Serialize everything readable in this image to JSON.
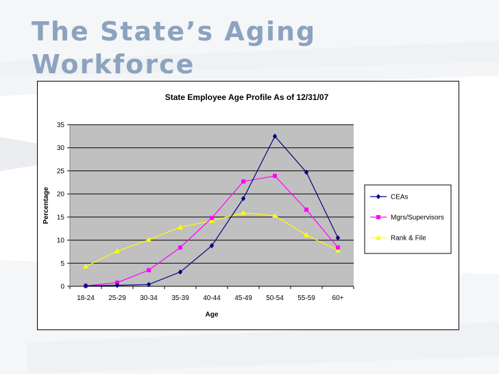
{
  "slide": {
    "title_line1": "The State’s Aging",
    "title_line2": "Workforce"
  },
  "colors": {
    "title": "#8ca3bf",
    "plot_area": "#c0c0c0",
    "series": [
      "#000080",
      "#ff00ff",
      "#ffff00"
    ]
  },
  "chart_data": {
    "type": "line",
    "title": "State Employee Age Profile As of 12/31/07",
    "xlabel": "Age",
    "ylabel": "Percentage",
    "categories": [
      "18-24",
      "25-29",
      "30-34",
      "35-39",
      "40-44",
      "45-49",
      "50-54",
      "55-59",
      "60+"
    ],
    "ylim": [
      0,
      35
    ],
    "yticks": [
      0,
      5,
      10,
      15,
      20,
      25,
      30,
      35
    ],
    "grid": true,
    "legend": "right",
    "series": [
      {
        "name": "CEAs",
        "marker": "diamond",
        "color": "#000080",
        "values": [
          0.1,
          0.2,
          0.4,
          3.1,
          8.8,
          19.0,
          32.5,
          24.7,
          10.5
        ]
      },
      {
        "name": "Mgrs/Supervisors",
        "marker": "square",
        "color": "#ff00ff",
        "values": [
          0.1,
          0.8,
          3.5,
          8.4,
          14.8,
          22.7,
          23.9,
          16.6,
          8.4
        ]
      },
      {
        "name": "Rank & File",
        "marker": "triangle",
        "color": "#ffff00",
        "values": [
          4.3,
          7.6,
          10.1,
          12.8,
          14.2,
          15.9,
          15.3,
          11.1,
          7.8
        ]
      }
    ]
  }
}
